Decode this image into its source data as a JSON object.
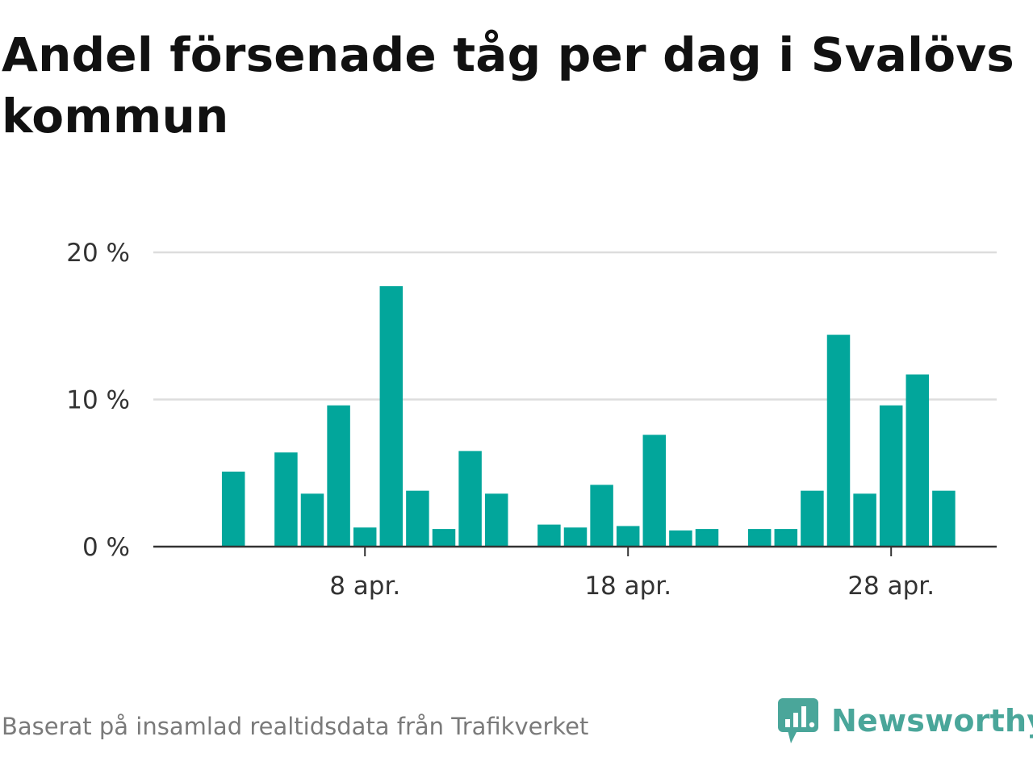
{
  "title": "Andel försenade tåg per dag i Svalövs kommun",
  "source": "Baserat på insamlad realtidsdata från Trafikverket",
  "brand": {
    "name": "Newsworthy",
    "icon": "bar-chart-speech-bubble-icon"
  },
  "colors": {
    "bar": "#02a69b",
    "grid": "#dddddd",
    "axis": "#333333",
    "brand": "#4aa69a"
  },
  "chart_data": {
    "type": "bar",
    "title": "Andel försenade tåg per dag i Svalövs kommun",
    "xlabel": "",
    "ylabel": "",
    "ylim": [
      0,
      20
    ],
    "yticks": [
      {
        "value": 0,
        "label": "0 %"
      },
      {
        "value": 10,
        "label": "10 %"
      },
      {
        "value": 20,
        "label": "20 %"
      }
    ],
    "xticks": [
      {
        "day": 8,
        "label": "8 apr."
      },
      {
        "day": 18,
        "label": "18 apr."
      },
      {
        "day": 28,
        "label": "28 apr."
      }
    ],
    "grid": true,
    "days": [
      1,
      2,
      3,
      4,
      5,
      6,
      7,
      8,
      9,
      10,
      11,
      12,
      13,
      14,
      15,
      16,
      17,
      18,
      19,
      20,
      21,
      22,
      23,
      24,
      25,
      26,
      27,
      28,
      29,
      30
    ],
    "values": [
      null,
      null,
      5.1,
      null,
      6.4,
      3.6,
      9.6,
      1.3,
      17.7,
      3.8,
      1.2,
      6.5,
      3.6,
      null,
      1.5,
      1.3,
      4.2,
      1.4,
      7.6,
      1.1,
      1.2,
      null,
      1.2,
      1.2,
      3.8,
      14.4,
      3.6,
      9.6,
      11.7,
      3.8
    ]
  }
}
